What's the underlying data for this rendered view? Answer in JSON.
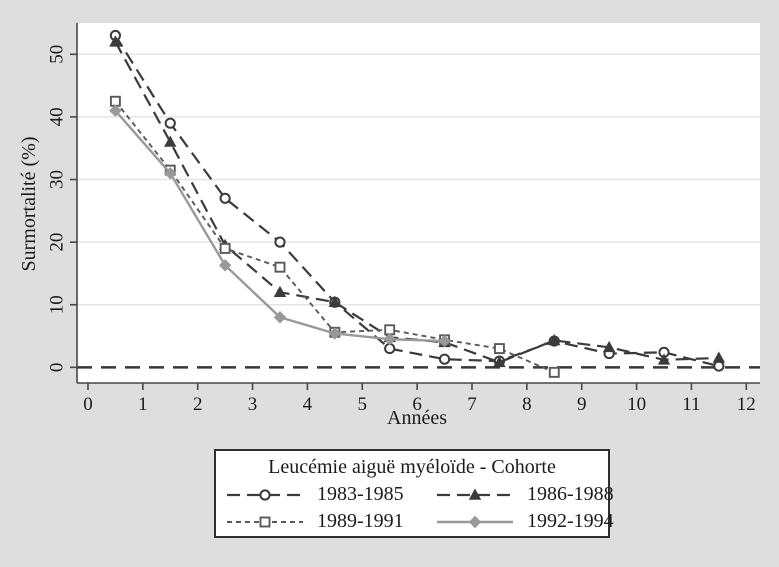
{
  "figure": {
    "background_color": "#dedede",
    "plot_background_color": "#ffffff"
  },
  "chart_data": {
    "type": "line",
    "title": "",
    "xlabel": "Années",
    "ylabel": "Surmortalité (%)",
    "xlim": [
      -0.2,
      12.25
    ],
    "ylim": [
      -2.5,
      55
    ],
    "xticks": [
      0,
      1,
      2,
      3,
      4,
      5,
      6,
      7,
      8,
      9,
      10,
      11,
      12
    ],
    "yticks": [
      0,
      10,
      20,
      30,
      40,
      50
    ],
    "grid": "horizontal-light",
    "zero_reference_line": {
      "y": 0,
      "style": "dashed",
      "color": "#383838"
    },
    "legend_position": "bottom-center-boxed",
    "legend_title": "Leucémie aiguë myéloïde - Cohorte",
    "series": [
      {
        "name": "1983-1985",
        "color": "#3b3b3b",
        "dash": "13 7",
        "width": 2.2,
        "marker": "circle",
        "marker_fill": "hollow",
        "x": [
          0.5,
          1.5,
          2.5,
          3.5,
          4.5,
          5.5,
          6.5,
          7.5,
          8.5,
          9.5,
          10.5,
          11.5
        ],
        "y": [
          53,
          39,
          27,
          20,
          10.4,
          3,
          1.3,
          1,
          4.2,
          2.2,
          2.4,
          0.2
        ]
      },
      {
        "name": "1986-1988",
        "color": "#3b3b3b",
        "dash": "13 7",
        "width": 2.2,
        "marker": "triangle",
        "marker_fill": "filled",
        "x": [
          0.5,
          1.5,
          2.5,
          3.5,
          4.5,
          5.5,
          6.5,
          7.5,
          8.5,
          9.5,
          10.5,
          11.5
        ],
        "y": [
          52,
          36,
          19.5,
          12,
          10.4,
          4.8,
          4,
          0.8,
          4.3,
          3.2,
          1.2,
          1.5
        ]
      },
      {
        "name": "1989-1991",
        "color": "#5a5a5a",
        "dash": "5 4",
        "width": 1.9,
        "marker": "square",
        "marker_fill": "hollow",
        "x": [
          0.5,
          1.5,
          2.5,
          3.5,
          4.5,
          5.5,
          6.5,
          7.5,
          8.5
        ],
        "y": [
          42.5,
          31.5,
          19,
          16,
          5.6,
          6,
          4.4,
          3,
          -0.8
        ]
      },
      {
        "name": "1992-1994",
        "color": "#999999",
        "dash": "none",
        "width": 2.4,
        "marker": "diamond",
        "marker_fill": "filled",
        "x": [
          0.5,
          1.5,
          2.5,
          3.5,
          4.5,
          5.5,
          6.5
        ],
        "y": [
          41,
          31,
          16.3,
          8,
          5.4,
          4.5,
          4.2
        ]
      }
    ]
  }
}
